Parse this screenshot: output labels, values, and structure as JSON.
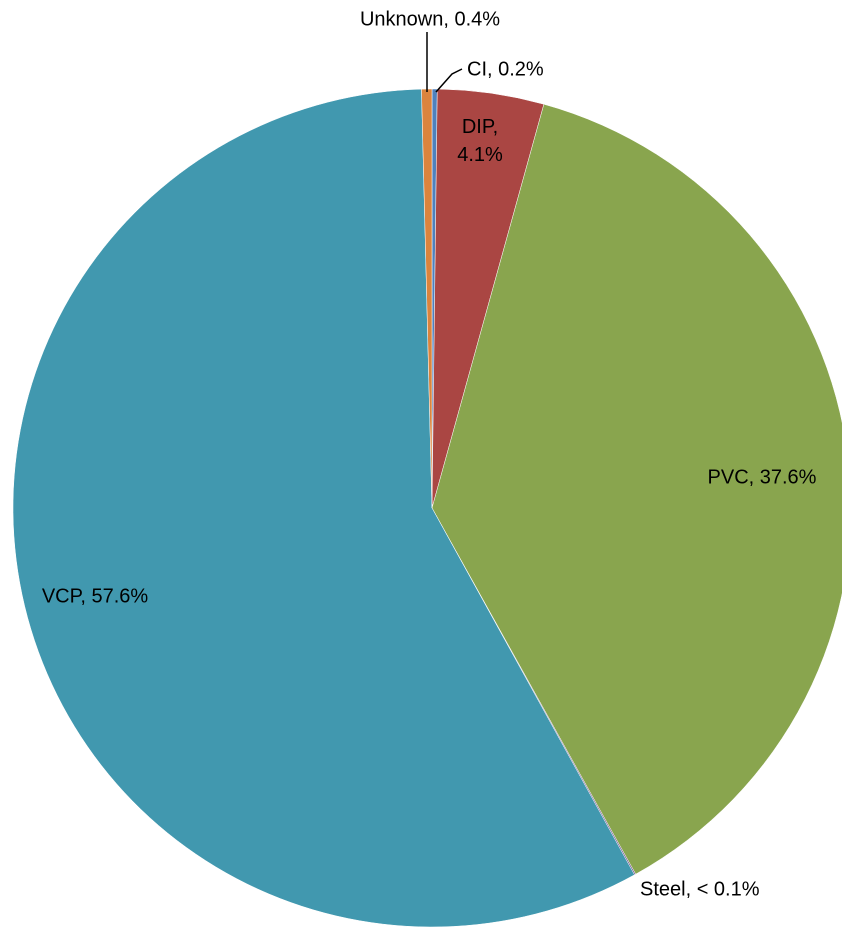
{
  "chart_data": {
    "type": "pie",
    "values": [
      0.2,
      4.1,
      37.6,
      0.05,
      57.6,
      0.4
    ],
    "value_labels": [
      "CI, 0.2%",
      [
        "DIP,",
        "4.1%"
      ],
      "PVC, 37.6%",
      "Steel, < 0.1%",
      "VCP, 57.6%",
      "Unknown, 0.4%"
    ],
    "colors": [
      "#4f81bd",
      "#aa4643",
      "#89a54e",
      "#71588f",
      "#4198af",
      "#db843d"
    ]
  }
}
